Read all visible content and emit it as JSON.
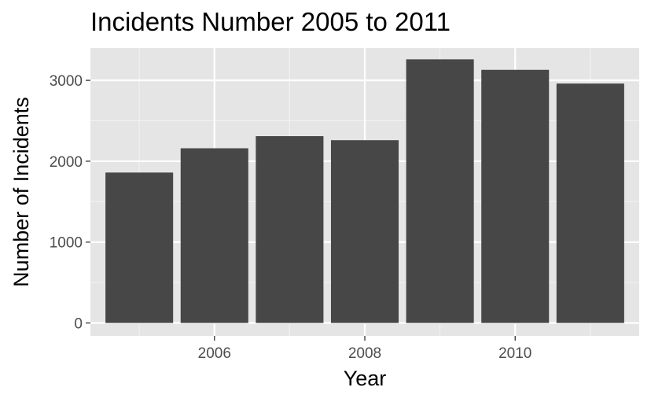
{
  "chart_data": {
    "type": "bar",
    "title": "Incidents Number 2005 to 2011",
    "xlabel": "Year",
    "ylabel": "Number of Incidents",
    "categories": [
      2005,
      2006,
      2007,
      2008,
      2009,
      2010,
      2011
    ],
    "values": [
      1860,
      2160,
      2310,
      2260,
      3260,
      3130,
      2960
    ],
    "x_ticks": [
      2006,
      2008,
      2010
    ],
    "y_ticks": [
      0,
      1000,
      2000,
      3000
    ],
    "xlim": [
      2004.35,
      2011.65
    ],
    "ylim": [
      -160,
      3400
    ],
    "grid": true,
    "legend": "none",
    "colors": {
      "bar": "#474747",
      "panel": "#e5e5e5",
      "grid_major": "#ffffff",
      "grid_minor": "#f2f2f2",
      "tick_text": "#4d4d4d",
      "tick_mark": "#333333"
    }
  }
}
